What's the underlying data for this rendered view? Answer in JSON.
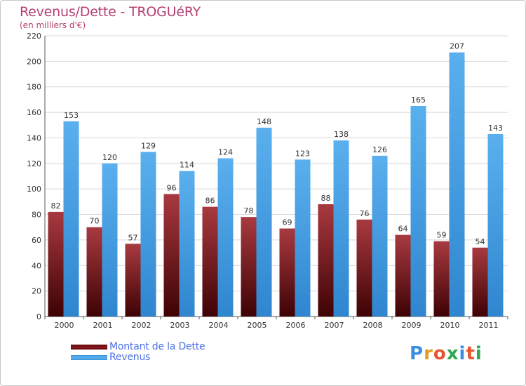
{
  "colors": {
    "debt": "#7a0d12",
    "debt_light": "#a62a30",
    "revenue": "#4aa3e6",
    "revenue_light": "#6bbcf2",
    "title": "#b5406f",
    "legend_text": "#4b6fe6",
    "grid": "#d8d8d8",
    "axis_text": "#333333"
  },
  "header": {
    "title": "Revenus/Dette - TROGUéRY",
    "subtitle": "(en milliers d'€)"
  },
  "legend": {
    "items": [
      {
        "label": "Montant de la Dette",
        "color": "#7a0d12"
      },
      {
        "label": "Revenus",
        "color": "#4aa3e6"
      }
    ]
  },
  "logo": {
    "text": "Proxiti",
    "letters": [
      "P",
      "r",
      "o",
      "x",
      "i",
      "t",
      "i"
    ],
    "letter_colors": [
      "#3a8de0",
      "#e89a1f",
      "#e8542f",
      "#2fa84f",
      "#3a8de0",
      "#e8542f",
      "#2fa84f"
    ]
  },
  "chart_data": {
    "type": "bar",
    "title": "Revenus/Dette - TROGUéRY",
    "subtitle": "(en milliers d'€)",
    "xlabel": "",
    "ylabel": "",
    "categories": [
      "2000",
      "2001",
      "2002",
      "2003",
      "2004",
      "2005",
      "2006",
      "2007",
      "2008",
      "2009",
      "2010",
      "2011"
    ],
    "series": [
      {
        "name": "Montant de la Dette",
        "values": [
          82,
          70,
          57,
          96,
          86,
          78,
          69,
          88,
          76,
          64,
          59,
          54
        ]
      },
      {
        "name": "Revenus",
        "values": [
          153,
          120,
          129,
          114,
          124,
          148,
          123,
          138,
          126,
          165,
          207,
          143
        ]
      }
    ],
    "ylim": [
      0,
      220
    ],
    "yticks": [
      0,
      20,
      40,
      60,
      80,
      100,
      120,
      140,
      160,
      180,
      200,
      220
    ],
    "grid": true,
    "legend_position": "bottom-left"
  }
}
